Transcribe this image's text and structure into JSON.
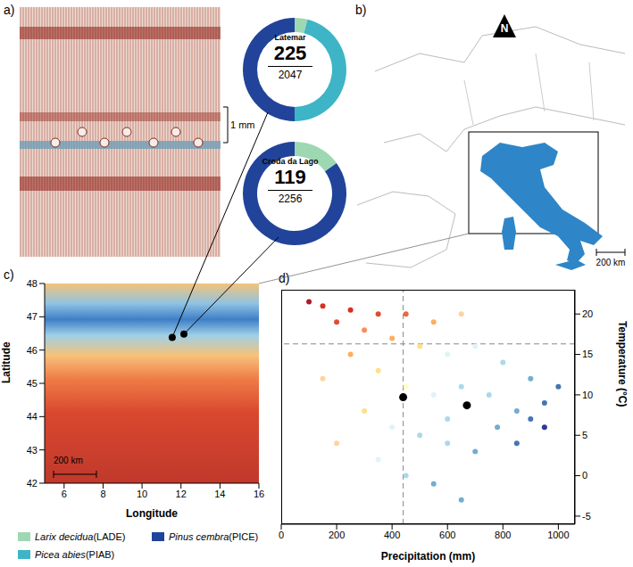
{
  "panel_letters": [
    "a)",
    "b)",
    "c)",
    "d)"
  ],
  "micrograph": {
    "scale_bar": "1 mm"
  },
  "map_overview": {
    "north": "N",
    "scale_bar": "200 km"
  },
  "chart_data": [
    {
      "type": "donut",
      "categories": [
        "Larix decidua (LADE)",
        "Picea abies (PIAB)",
        "Pinus cembra (PICE)"
      ],
      "colors": [
        "#9dd8b3",
        "#3db5c6",
        "#21449a"
      ],
      "legend": "bottom",
      "sites": [
        {
          "name": "Latemar",
          "count": 225,
          "total": 2047,
          "values": [
            4,
            46,
            50
          ]
        },
        {
          "name": "Croda da Lago",
          "count": 119,
          "total": 2256,
          "values": [
            15,
            0,
            85
          ]
        }
      ]
    },
    {
      "type": "map",
      "xlabel": "Longitude",
      "ylabel": "Latitude",
      "xlim": [
        5,
        16
      ],
      "xticks": [
        6,
        8,
        10,
        12,
        14,
        16
      ],
      "ylim": [
        42,
        48
      ],
      "yticks": [
        42,
        43,
        44,
        45,
        46,
        47,
        48
      ],
      "scale_bar": "200 km",
      "points": {
        "x": [
          11.55,
          12.15
        ],
        "y": [
          46.38,
          46.48
        ],
        "color": "#000000"
      }
    },
    {
      "type": "scatter",
      "xlabel": "Precipitation (mm)",
      "ylabel": "Temperature (°C)",
      "xlim": [
        0,
        1060
      ],
      "xticks": [
        0,
        200,
        400,
        600,
        800,
        1000
      ],
      "ylim": [
        -6,
        23
      ],
      "yticks": [
        -5,
        0,
        5,
        10,
        15,
        20
      ],
      "reference_lines": {
        "x": 440,
        "y": 16.3
      },
      "series": [
        {
          "x": [
            150,
            250,
            350,
            200,
            450,
            300,
            550,
            650,
            400,
            500,
            250,
            350,
            150,
            600,
            700,
            800,
            450,
            550,
            650,
            750,
            850,
            900,
            950,
            300,
            400,
            500,
            600,
            700,
            350,
            450,
            550,
            650,
            200,
            100,
            900,
            1000,
            780,
            850,
            950,
            600
          ],
          "y": [
            21,
            20.5,
            20,
            19,
            20,
            18,
            19,
            20,
            17,
            16,
            15,
            13,
            12,
            15,
            16,
            14,
            11,
            10,
            11,
            10,
            8,
            7,
            6,
            8,
            6,
            5,
            4,
            3,
            2,
            0,
            -1,
            -3,
            4,
            21.5,
            12,
            11,
            6,
            4,
            9,
            7
          ],
          "colors": [
            "#d7301f",
            "#d7301f",
            "#e34a33",
            "#e34a33",
            "#ef6548",
            "#fc8d59",
            "#fdae61",
            "#fdd49e",
            "#fdae61",
            "#fee08b",
            "#fdae61",
            "#fee08b",
            "#fdd49e",
            "#e0f3f8",
            "#e0f3f8",
            "#abd9e9",
            "#ffffbf",
            "#e0f3f8",
            "#abd9e9",
            "#abd9e9",
            "#74add1",
            "#4575b4",
            "#313695",
            "#fee08b",
            "#e0f3f8",
            "#abd9e9",
            "#abd9e9",
            "#74add1",
            "#e0f3f8",
            "#abd9e9",
            "#74add1",
            "#74add1",
            "#fdd49e",
            "#b2182b",
            "#74add1",
            "#4575b4",
            "#74add1",
            "#4575b4",
            "#4575b4",
            "#abd9e9"
          ]
        },
        {
          "x": [
            440,
            670
          ],
          "y": [
            9.7,
            8.7
          ],
          "color": "#000000"
        }
      ]
    }
  ]
}
